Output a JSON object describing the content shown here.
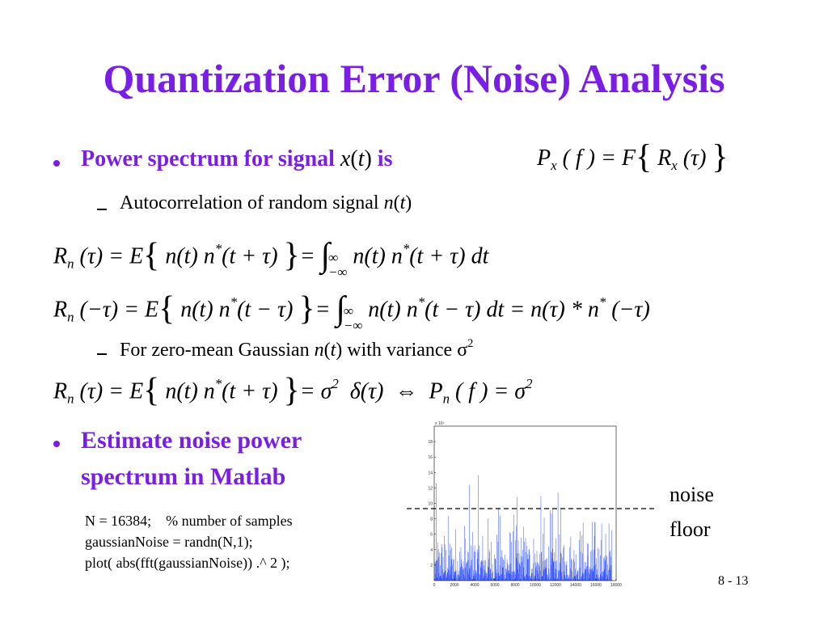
{
  "title": "Quantization Error (Noise) Analysis",
  "bullet1": [
    {
      "t": "Power spectrum for signal ",
      "s": "b"
    },
    {
      "t": "x",
      "s": "i"
    },
    {
      "t": "("
    },
    {
      "t": "t",
      "s": "i"
    },
    {
      "t": ")"
    },
    {
      "t": " is",
      "s": "b"
    }
  ],
  "eq0": [
    {
      "t": "P"
    },
    {
      "t": "x",
      "s": "sub"
    },
    {
      "t": " ( f ) = F"
    },
    {
      "t": "{",
      "s": "big"
    },
    {
      "t": " R"
    },
    {
      "t": "x",
      "s": "sub"
    },
    {
      "t": " (τ) "
    },
    {
      "t": "}",
      "s": "big"
    }
  ],
  "sub1": [
    {
      "t": "Autocorrelation of random signal "
    },
    {
      "t": "n",
      "s": "i"
    },
    {
      "t": "("
    },
    {
      "t": "t",
      "s": "i"
    },
    {
      "t": ")"
    }
  ],
  "eq1": [
    {
      "t": "R"
    },
    {
      "t": "n",
      "s": "sub"
    },
    {
      "t": " (τ) = E"
    },
    {
      "t": "{",
      "s": "big"
    },
    {
      "t": " n(t) n"
    },
    {
      "t": "*",
      "s": "sup"
    },
    {
      "t": "(t + τ) "
    },
    {
      "t": "}",
      "s": "big"
    },
    {
      "t": "= "
    },
    {
      "t": "∫",
      "s": "big"
    },
    {
      "t": "∞",
      "s": "over"
    },
    {
      "t": "−∞",
      "s": "under"
    },
    {
      "t": " n(t) n"
    },
    {
      "t": "*",
      "s": "sup"
    },
    {
      "t": "(t + τ) dt"
    }
  ],
  "eq2": [
    {
      "t": "R"
    },
    {
      "t": "n",
      "s": "sub"
    },
    {
      "t": " (−τ) = E"
    },
    {
      "t": "{",
      "s": "big"
    },
    {
      "t": " n(t) n"
    },
    {
      "t": "*",
      "s": "sup"
    },
    {
      "t": "(t − τ) "
    },
    {
      "t": "}",
      "s": "big"
    },
    {
      "t": "= "
    },
    {
      "t": "∫",
      "s": "big"
    },
    {
      "t": "∞",
      "s": "over"
    },
    {
      "t": "−∞",
      "s": "under"
    },
    {
      "t": " n(t) n"
    },
    {
      "t": "*",
      "s": "sup"
    },
    {
      "t": "(t − τ) dt = n(τ) * n"
    },
    {
      "t": "*",
      "s": "sup"
    },
    {
      "t": " (−τ)"
    }
  ],
  "sub2": [
    {
      "t": "For zero-mean Gaussian "
    },
    {
      "t": "n",
      "s": "i"
    },
    {
      "t": "("
    },
    {
      "t": "t",
      "s": "i"
    },
    {
      "t": ") with variance σ"
    },
    {
      "t": "2",
      "s": "sup"
    }
  ],
  "eq3": [
    {
      "t": "R"
    },
    {
      "t": "n",
      "s": "sub"
    },
    {
      "t": " (τ) = E"
    },
    {
      "t": "{",
      "s": "big"
    },
    {
      "t": " n(t) n"
    },
    {
      "t": "*",
      "s": "sup"
    },
    {
      "t": "(t + τ) "
    },
    {
      "t": "}",
      "s": "big"
    },
    {
      "t": "= σ"
    },
    {
      "t": "2",
      "s": "sup"
    },
    {
      "t": "  δ(τ)  ⇔  P"
    },
    {
      "t": "n",
      "s": "sub"
    },
    {
      "t": " ( f ) = σ"
    },
    {
      "t": "2",
      "s": "sup"
    }
  ],
  "bullet2": [
    "Estimate noise power",
    "spectrum in Matlab"
  ],
  "code": [
    "N = 16384;    % number of samples",
    "gaussianNoise = randn(N,1);",
    "plot( abs(fft(gaussianNoise)) .^ 2 );"
  ],
  "annotation": [
    "noise",
    "floor"
  ],
  "page_number": "8 - 13",
  "plot": {
    "exponent": "x 10⁴",
    "xlim": [
      0,
      18000
    ],
    "xticks": [
      0,
      2000,
      4000,
      6000,
      8000,
      10000,
      12000,
      14000,
      16000,
      18000
    ],
    "ylim": [
      0,
      20
    ],
    "yticks": [
      2,
      4,
      6,
      8,
      10,
      12,
      14,
      16,
      18
    ]
  }
}
